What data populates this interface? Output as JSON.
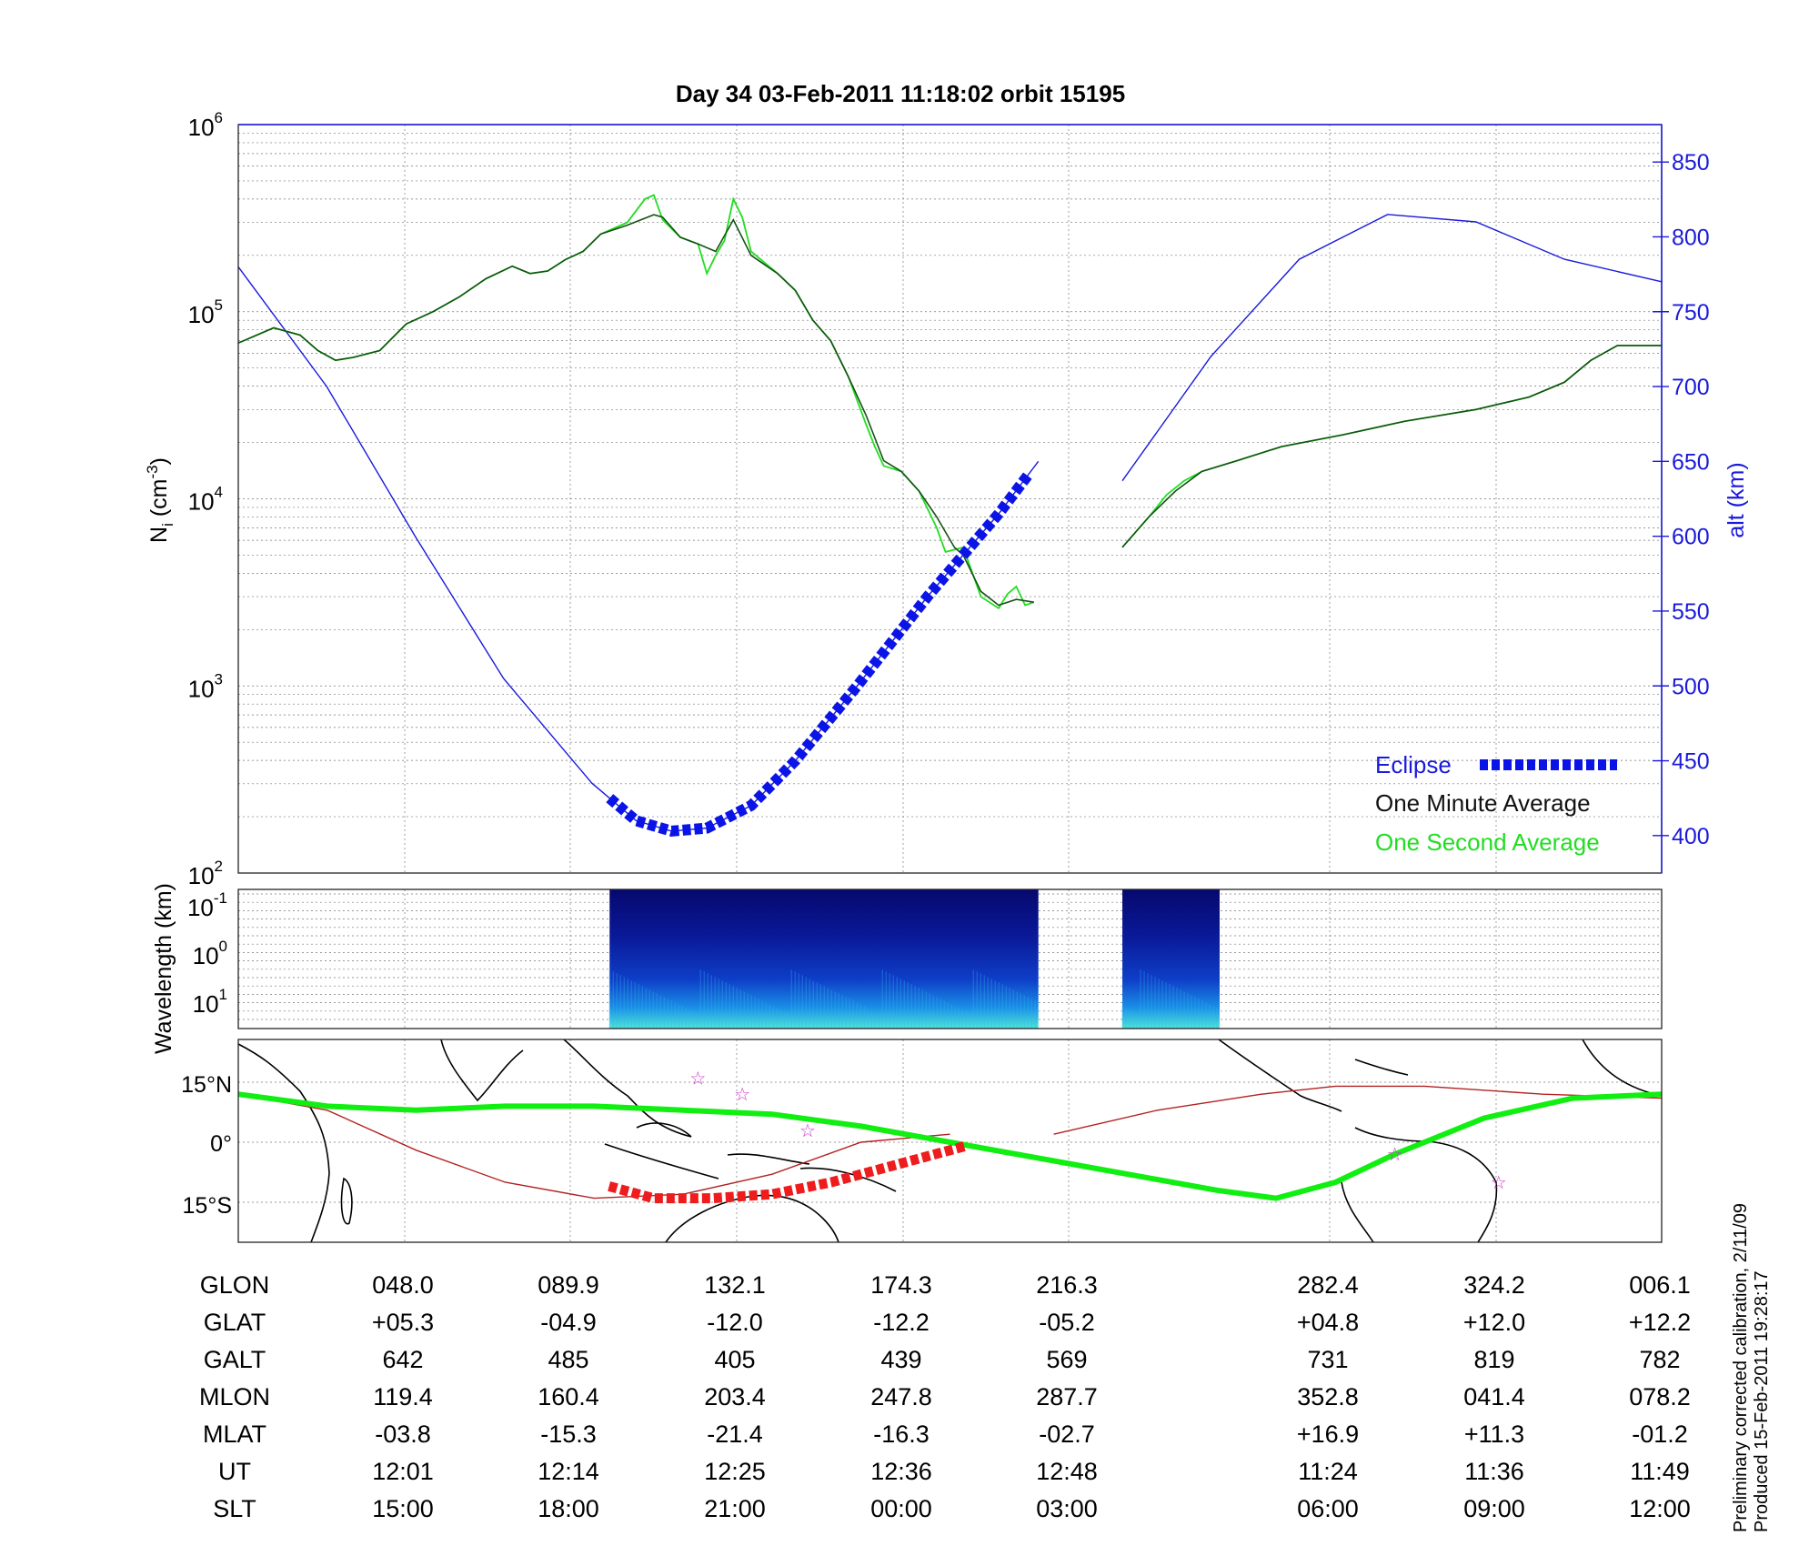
{
  "title": "Day 34  03-Feb-2011 11:18:02   orbit 15195",
  "panels": {
    "density": {
      "ylabel_main": "N",
      "ylabel_sub": "i",
      "ylabel_unit_open": " (cm",
      "ylabel_unit_exp": "-3",
      "ylabel_unit_close": ")",
      "y2label": "alt (km)"
    },
    "spectrum": {
      "ylabel": "Wavelength (km)"
    },
    "map": {
      "lat_ticks": [
        "15°N",
        "0°",
        "15°S"
      ]
    }
  },
  "legend": {
    "eclipse": "Eclipse",
    "minute": "One Minute Average",
    "second": "One Second Average"
  },
  "chart_data": {
    "type": "line",
    "x_ticks_ut": [
      "12:01",
      "12:14",
      "12:25",
      "12:36",
      "12:48",
      "11:24",
      "11:36",
      "11:49"
    ],
    "yscale": "log",
    "ylim": [
      100,
      1000000
    ],
    "yticks": [
      {
        "base": "10",
        "exp": "2"
      },
      {
        "base": "10",
        "exp": "3"
      },
      {
        "base": "10",
        "exp": "4"
      },
      {
        "base": "10",
        "exp": "5"
      },
      {
        "base": "10",
        "exp": "6"
      }
    ],
    "y2lim": [
      375,
      875
    ],
    "y2ticks": [
      "400",
      "450",
      "500",
      "550",
      "600",
      "650",
      "700",
      "750",
      "800",
      "850"
    ],
    "colors": {
      "altitude": "#1a1adb",
      "minute": "#145214",
      "second": "#22dd22",
      "eclipse": "#0a14e6",
      "track": "#11ee11",
      "orbit": "#b22222",
      "eclipse_track": "#ee1c1c",
      "star": "#cc33cc"
    },
    "spectrum_yticks": [
      {
        "base": "10",
        "exp": "-1"
      },
      {
        "base": "10",
        "exp": "0"
      },
      {
        "base": "10",
        "exp": "1"
      }
    ],
    "series": [
      {
        "name": "One Minute Average",
        "segments": [
          [
            [
              0.0,
              68000
            ],
            [
              0.04,
              82000
            ],
            [
              0.07,
              75000
            ],
            [
              0.09,
              62000
            ],
            [
              0.11,
              55000
            ],
            [
              0.13,
              57000
            ],
            [
              0.16,
              62000
            ],
            [
              0.19,
              86000
            ],
            [
              0.22,
              100000
            ],
            [
              0.25,
              120000
            ],
            [
              0.28,
              150000
            ],
            [
              0.31,
              175000
            ],
            [
              0.33,
              160000
            ],
            [
              0.35,
              165000
            ],
            [
              0.37,
              190000
            ],
            [
              0.39,
              210000
            ],
            [
              0.41,
              260000
            ],
            [
              0.44,
              290000
            ],
            [
              0.47,
              330000
            ],
            [
              0.48,
              320000
            ],
            [
              0.5,
              250000
            ],
            [
              0.52,
              230000
            ],
            [
              0.54,
              210000
            ],
            [
              0.56,
              310000
            ],
            [
              0.58,
              200000
            ],
            [
              0.61,
              160000
            ],
            [
              0.63,
              130000
            ],
            [
              0.65,
              90000
            ],
            [
              0.67,
              70000
            ],
            [
              0.69,
              45000
            ],
            [
              0.71,
              28000
            ],
            [
              0.73,
              16000
            ],
            [
              0.75,
              14000
            ],
            [
              0.77,
              11000
            ],
            [
              0.79,
              8000
            ],
            [
              0.81,
              5500
            ],
            [
              0.82,
              5000
            ],
            [
              0.84,
              3200
            ],
            [
              0.86,
              2700
            ],
            [
              0.88,
              2900
            ],
            [
              0.9,
              2800
            ]
          ],
          [
            [
              1.0,
              5500
            ],
            [
              1.03,
              8000
            ],
            [
              1.06,
              11000
            ],
            [
              1.09,
              14000
            ],
            [
              1.13,
              16000
            ],
            [
              1.18,
              19000
            ],
            [
              1.25,
              22000
            ],
            [
              1.32,
              26000
            ],
            [
              1.4,
              30000
            ],
            [
              1.46,
              35000
            ],
            [
              1.5,
              42000
            ],
            [
              1.53,
              55000
            ],
            [
              1.56,
              66000
            ],
            [
              1.61,
              66000
            ]
          ]
        ]
      },
      {
        "name": "One Second Average",
        "segments": [
          [
            [
              0.0,
              68000
            ],
            [
              0.04,
              82000
            ],
            [
              0.07,
              75000
            ],
            [
              0.09,
              62000
            ],
            [
              0.11,
              55000
            ],
            [
              0.13,
              57000
            ],
            [
              0.16,
              62000
            ],
            [
              0.19,
              86000
            ],
            [
              0.22,
              100000
            ],
            [
              0.25,
              120000
            ],
            [
              0.28,
              150000
            ],
            [
              0.31,
              175000
            ],
            [
              0.33,
              160000
            ],
            [
              0.35,
              165000
            ],
            [
              0.37,
              190000
            ],
            [
              0.39,
              210000
            ],
            [
              0.41,
              260000
            ],
            [
              0.44,
              300000
            ],
            [
              0.46,
              400000
            ],
            [
              0.47,
              420000
            ],
            [
              0.48,
              310000
            ],
            [
              0.5,
              250000
            ],
            [
              0.52,
              230000
            ],
            [
              0.53,
              160000
            ],
            [
              0.54,
              200000
            ],
            [
              0.55,
              240000
            ],
            [
              0.56,
              400000
            ],
            [
              0.57,
              320000
            ],
            [
              0.58,
              210000
            ],
            [
              0.61,
              160000
            ],
            [
              0.63,
              130000
            ],
            [
              0.65,
              90000
            ],
            [
              0.67,
              70000
            ],
            [
              0.69,
              45000
            ],
            [
              0.71,
              25000
            ],
            [
              0.72,
              19000
            ],
            [
              0.73,
              15000
            ],
            [
              0.75,
              14000
            ],
            [
              0.77,
              11000
            ],
            [
              0.79,
              7000
            ],
            [
              0.8,
              5200
            ],
            [
              0.82,
              5500
            ],
            [
              0.84,
              3000
            ],
            [
              0.86,
              2600
            ],
            [
              0.87,
              3100
            ],
            [
              0.88,
              3400
            ],
            [
              0.89,
              2700
            ],
            [
              0.9,
              2800
            ]
          ],
          [
            [
              1.0,
              5500
            ],
            [
              1.03,
              8000
            ],
            [
              1.05,
              10500
            ],
            [
              1.07,
              12500
            ],
            [
              1.09,
              14000
            ],
            [
              1.13,
              16000
            ],
            [
              1.18,
              19000
            ],
            [
              1.25,
              22000
            ],
            [
              1.32,
              26000
            ],
            [
              1.4,
              30000
            ],
            [
              1.46,
              35000
            ],
            [
              1.5,
              42000
            ],
            [
              1.53,
              55000
            ],
            [
              1.56,
              66000
            ],
            [
              1.61,
              66000
            ]
          ]
        ]
      }
    ],
    "altitude_km": [
      [
        0.0,
        780
      ],
      [
        0.1,
        700
      ],
      [
        0.2,
        600
      ],
      [
        0.3,
        505
      ],
      [
        0.4,
        435
      ],
      [
        0.45,
        410
      ],
      [
        0.49,
        403
      ],
      [
        0.53,
        405
      ],
      [
        0.58,
        420
      ],
      [
        0.63,
        450
      ],
      [
        0.7,
        500
      ],
      [
        0.78,
        560
      ],
      [
        0.86,
        615
      ],
      [
        0.905,
        650
      ],
      null,
      [
        1.0,
        637
      ],
      [
        1.1,
        720
      ],
      [
        1.2,
        785
      ],
      [
        1.3,
        815
      ],
      [
        1.4,
        810
      ],
      [
        1.5,
        785
      ],
      [
        1.61,
        770
      ]
    ],
    "eclipse_interval": [
      0.42,
      0.895
    ],
    "spectrum_intervals": [
      [
        0.42,
        0.905
      ],
      [
        1.0,
        1.11
      ]
    ],
    "map_track": {
      "ground_track_latlon": [
        [
          -180,
          12
        ],
        [
          -150,
          9
        ],
        [
          -120,
          8
        ],
        [
          -90,
          9
        ],
        [
          -60,
          9
        ],
        [
          -30,
          8
        ],
        [
          0,
          7
        ],
        [
          30,
          4
        ],
        [
          60,
          0
        ],
        [
          90,
          -4
        ],
        [
          120,
          -8
        ],
        [
          150,
          -12
        ],
        [
          170,
          -14
        ],
        [
          190,
          -10
        ],
        [
          210,
          -3
        ],
        [
          240,
          6
        ],
        [
          270,
          11
        ],
        [
          300,
          12
        ]
      ],
      "orbit_latlon": [
        [
          -180,
          12
        ],
        [
          -150,
          8
        ],
        [
          -120,
          -2
        ],
        [
          -90,
          -10
        ],
        [
          -60,
          -14
        ],
        [
          -30,
          -13
        ],
        [
          0,
          -8
        ],
        [
          30,
          0
        ],
        [
          60,
          2
        ],
        null,
        [
          95,
          2
        ],
        [
          130,
          8
        ],
        [
          165,
          12
        ],
        [
          190,
          14
        ],
        [
          220,
          14
        ],
        [
          260,
          12
        ],
        [
          300,
          11
        ]
      ],
      "eclipse_latlon": [
        [
          -55,
          -11
        ],
        [
          -40,
          -14
        ],
        [
          -20,
          -14
        ],
        [
          0,
          -13
        ],
        [
          20,
          -10
        ],
        [
          40,
          -6
        ],
        [
          60,
          -2
        ],
        [
          65,
          -1
        ]
      ],
      "stars_latlon": [
        [
          -25,
          16
        ],
        [
          -10,
          12
        ],
        [
          12,
          3
        ],
        [
          210,
          -3
        ],
        [
          245,
          -10
        ]
      ]
    },
    "table": {
      "row_labels": [
        "GLON",
        "GLAT",
        "GALT",
        "MLON",
        "MLAT",
        "UT",
        "SLT"
      ],
      "columns": [
        [
          "048.0",
          "+05.3",
          "642",
          "119.4",
          "-03.8",
          "12:01",
          "15:00"
        ],
        [
          "089.9",
          "-04.9",
          "485",
          "160.4",
          "-15.3",
          "12:14",
          "18:00"
        ],
        [
          "132.1",
          "-12.0",
          "405",
          "203.4",
          "-21.4",
          "12:25",
          "21:00"
        ],
        [
          "174.3",
          "-12.2",
          "439",
          "247.8",
          "-16.3",
          "12:36",
          "00:00"
        ],
        [
          "216.3",
          "-05.2",
          "569",
          "287.7",
          "-02.7",
          "12:48",
          "03:00"
        ],
        [
          "282.4",
          "+04.8",
          "731",
          "352.8",
          "+16.9",
          "11:24",
          "06:00"
        ],
        [
          "324.2",
          "+12.0",
          "819",
          "041.4",
          "+11.3",
          "11:36",
          "09:00"
        ],
        [
          "006.1",
          "+12.2",
          "782",
          "078.2",
          "-01.2",
          "11:49",
          "12:00"
        ]
      ]
    }
  },
  "footer": {
    "line1": "Preliminary corrected calibration, 2/11/09",
    "line2": "Produced 15-Feb-2011 19:28:17"
  }
}
